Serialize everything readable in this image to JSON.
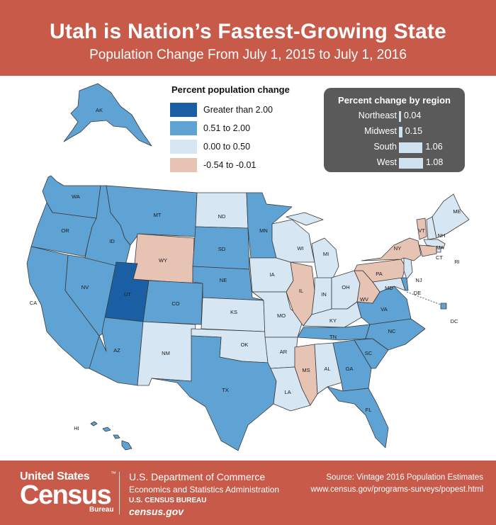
{
  "header": {
    "title": "Utah is Nation’s Fastest-Growing State",
    "subtitle": "Population Change From July 1, 2015 to July 1, 2016"
  },
  "legend": {
    "title": "Percent population change",
    "items": [
      {
        "label": "Greater than 2.00",
        "color": "#1a5fa3"
      },
      {
        "label": "0.51 to 2.00",
        "color": "#5fa2d4"
      },
      {
        "label": "0.00 to 0.50",
        "color": "#d6e6f2"
      },
      {
        "label": "-0.54 to -0.01",
        "color": "#e7c3b4"
      }
    ]
  },
  "regions": {
    "title": "Percent change by region",
    "items": [
      {
        "name": "Northeast",
        "value": "0.04",
        "num": 0.04
      },
      {
        "name": "Midwest",
        "value": "0.15",
        "num": 0.15
      },
      {
        "name": "South",
        "value": "1.06",
        "num": 1.06
      },
      {
        "name": "West",
        "value": "1.08",
        "num": 1.08
      }
    ]
  },
  "states": {
    "AK": {
      "label": "AK",
      "cat": 1
    },
    "HI": {
      "label": "HI",
      "cat": 1
    },
    "WA": {
      "label": "WA",
      "cat": 1
    },
    "OR": {
      "label": "OR",
      "cat": 1
    },
    "CA": {
      "label": "CA",
      "cat": 1
    },
    "NV": {
      "label": "NV",
      "cat": 1
    },
    "ID": {
      "label": "ID",
      "cat": 1
    },
    "MT": {
      "label": "MT",
      "cat": 1
    },
    "WY": {
      "label": "WY",
      "cat": 3
    },
    "UT": {
      "label": "UT",
      "cat": 0
    },
    "AZ": {
      "label": "AZ",
      "cat": 1
    },
    "CO": {
      "label": "CO",
      "cat": 1
    },
    "NM": {
      "label": "NM",
      "cat": 2
    },
    "ND": {
      "label": "ND",
      "cat": 2
    },
    "SD": {
      "label": "SD",
      "cat": 1
    },
    "NE": {
      "label": "NE",
      "cat": 1
    },
    "KS": {
      "label": "KS",
      "cat": 2
    },
    "OK": {
      "label": "OK",
      "cat": 2
    },
    "TX": {
      "label": "TX",
      "cat": 1
    },
    "MN": {
      "label": "MN",
      "cat": 1
    },
    "IA": {
      "label": "IA",
      "cat": 2
    },
    "MO": {
      "label": "MO",
      "cat": 2
    },
    "AR": {
      "label": "AR",
      "cat": 2
    },
    "LA": {
      "label": "LA",
      "cat": 2
    },
    "WI": {
      "label": "WI",
      "cat": 2
    },
    "IL": {
      "label": "IL",
      "cat": 3
    },
    "MI": {
      "label": "MI",
      "cat": 2
    },
    "IN": {
      "label": "IN",
      "cat": 2
    },
    "OH": {
      "label": "OH",
      "cat": 2
    },
    "KY": {
      "label": "KY",
      "cat": 2
    },
    "TN": {
      "label": "TN",
      "cat": 1
    },
    "MS": {
      "label": "MS",
      "cat": 3
    },
    "AL": {
      "label": "AL",
      "cat": 2
    },
    "GA": {
      "label": "GA",
      "cat": 1
    },
    "FL": {
      "label": "FL",
      "cat": 1
    },
    "SC": {
      "label": "SC",
      "cat": 1
    },
    "NC": {
      "label": "NC",
      "cat": 1
    },
    "VA": {
      "label": "VA",
      "cat": 1
    },
    "WV": {
      "label": "WV",
      "cat": 3
    },
    "PA": {
      "label": "PA",
      "cat": 3
    },
    "NY": {
      "label": "NY",
      "cat": 3
    },
    "VT": {
      "label": "VT",
      "cat": 3
    },
    "NH": {
      "label": "NH",
      "cat": 2
    },
    "ME": {
      "label": "ME",
      "cat": 2
    },
    "MA": {
      "label": "MA",
      "cat": 2
    },
    "RI": {
      "label": "RI",
      "cat": 2
    },
    "CT": {
      "label": "CT",
      "cat": 3
    },
    "NJ": {
      "label": "NJ",
      "cat": 2
    },
    "DE": {
      "label": "DE",
      "cat": 1
    },
    "MD": {
      "label": "MD",
      "cat": 2
    },
    "DC": {
      "label": "DC",
      "cat": 1
    }
  },
  "footer": {
    "logo_line1": "United States",
    "logo_tm": "™",
    "logo_line2": "Census",
    "logo_line3": "Bureau",
    "dept": "U.S. Department of Commerce",
    "admin": "Economics and Statistics Administration",
    "bureau": "U.S. CENSUS BUREAU",
    "site": "census.gov",
    "source": "Source: Vintage 2016 Population Estimates",
    "url": "www.census.gov/programs-surveys/popest.html"
  }
}
